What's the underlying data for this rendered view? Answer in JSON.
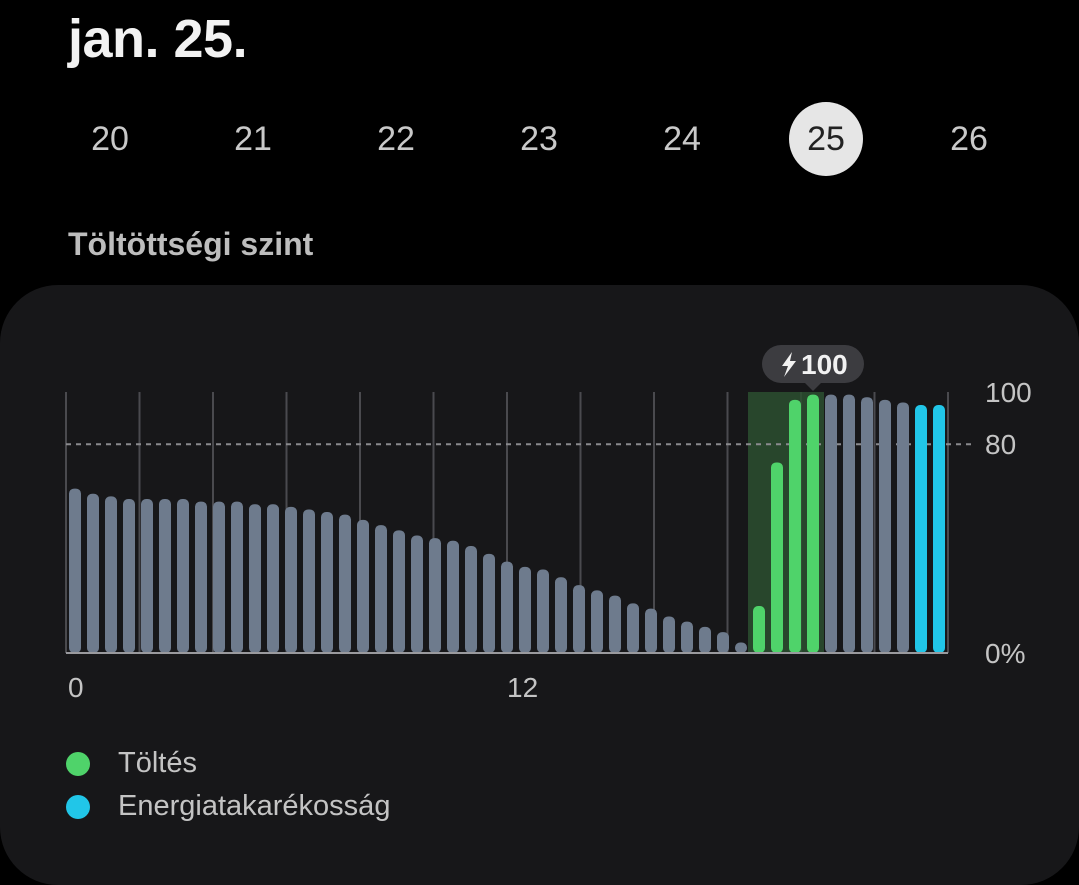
{
  "header": {
    "date_title": "jan. 25."
  },
  "day_strip": {
    "days": [
      "20",
      "21",
      "22",
      "23",
      "24",
      "25",
      "26"
    ],
    "selected": "25"
  },
  "section": {
    "title": "Töltöttségi szint"
  },
  "legend": {
    "items": [
      {
        "label": "Töltés",
        "color": "#4fd36a"
      },
      {
        "label": "Energiatakarékosság",
        "color": "#21c6e8"
      }
    ]
  },
  "colors": {
    "normal": "#6e7b8d",
    "charging": "#4fd36a",
    "power_saving": "#21c6e8",
    "charging_highlight": "#2c4f30",
    "card": "#171719"
  },
  "chart_data": {
    "type": "bar",
    "x_tick_labels": [
      "0",
      "12"
    ],
    "y_tick_labels": [
      "100",
      "80",
      "0%"
    ],
    "ylim": [
      0,
      100
    ],
    "reference_line": 80,
    "callout": {
      "icon": "lightning-icon",
      "text": "100"
    },
    "values": [
      63,
      61,
      60,
      59,
      59,
      59,
      59,
      58,
      58,
      58,
      57,
      57,
      56,
      55,
      54,
      53,
      51,
      49,
      47,
      45,
      44,
      43,
      41,
      38,
      35,
      33,
      32,
      29,
      26,
      24,
      22,
      19,
      17,
      14,
      12,
      10,
      8,
      4,
      18,
      73,
      97,
      99,
      99,
      99,
      98,
      97,
      96,
      95,
      95
    ],
    "states": [
      "n",
      "n",
      "n",
      "n",
      "n",
      "n",
      "n",
      "n",
      "n",
      "n",
      "n",
      "n",
      "n",
      "n",
      "n",
      "n",
      "n",
      "n",
      "n",
      "n",
      "n",
      "n",
      "n",
      "n",
      "n",
      "n",
      "n",
      "n",
      "n",
      "n",
      "n",
      "n",
      "n",
      "n",
      "n",
      "n",
      "n",
      "n",
      "c",
      "c",
      "c",
      "c",
      "n",
      "n",
      "n",
      "n",
      "n",
      "s",
      "s"
    ]
  }
}
